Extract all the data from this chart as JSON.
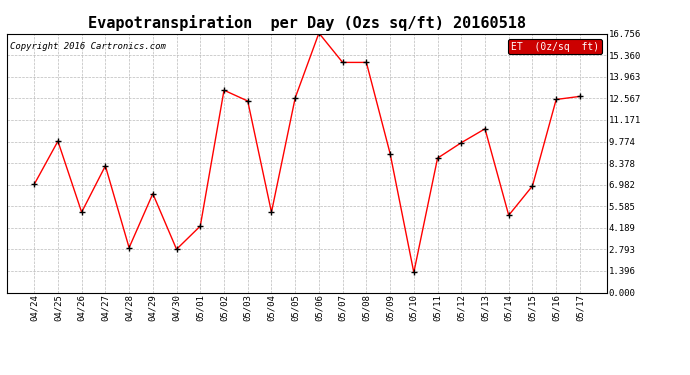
{
  "title": "Evapotranspiration  per Day (Ozs sq/ft) 20160518",
  "copyright": "Copyright 2016 Cartronics.com",
  "legend_label": "ET  (0z/sq  ft)",
  "x_labels": [
    "04/24",
    "04/25",
    "04/26",
    "04/27",
    "04/28",
    "04/29",
    "04/30",
    "05/01",
    "05/02",
    "05/03",
    "05/04",
    "05/05",
    "05/06",
    "05/07",
    "05/08",
    "05/09",
    "05/10",
    "05/11",
    "05/12",
    "05/13",
    "05/14",
    "05/15",
    "05/16",
    "05/17"
  ],
  "y_values": [
    7.0,
    9.8,
    5.2,
    8.2,
    2.9,
    6.4,
    2.8,
    4.3,
    13.1,
    12.4,
    5.2,
    12.6,
    16.8,
    14.9,
    14.9,
    9.0,
    1.3,
    8.7,
    9.7,
    10.6,
    5.0,
    6.9,
    12.5,
    12.7
  ],
  "line_color": "red",
  "marker_color": "black",
  "background_color": "#ffffff",
  "grid_color": "#aaaaaa",
  "y_ticks": [
    0.0,
    1.396,
    2.793,
    4.189,
    5.585,
    6.982,
    8.378,
    9.774,
    11.171,
    12.567,
    13.963,
    15.36,
    16.756
  ],
  "ylim": [
    0,
    16.756
  ],
  "title_fontsize": 11,
  "copyright_fontsize": 6.5,
  "tick_fontsize": 6.5,
  "legend_bg": "#cc0000",
  "legend_text_color": "#ffffff"
}
